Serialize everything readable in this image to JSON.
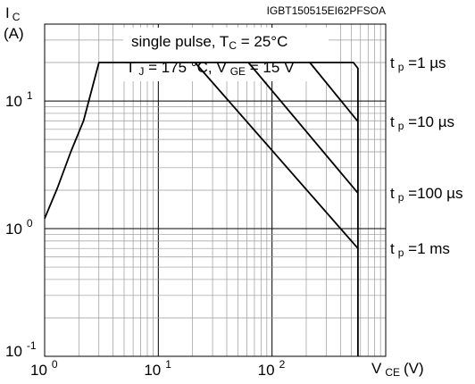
{
  "chart_data": {
    "type": "line",
    "figure_id": "IGBT150515EI62PFSOA",
    "y_axis": {
      "symbol": "I",
      "subscript": "C",
      "unit": "(A)",
      "scale": "log",
      "ylim": [
        0.1,
        40
      ],
      "tick_labels": [
        {
          "value": 0.1,
          "base": "10",
          "exp": "-1"
        },
        {
          "value": 1,
          "base": "10",
          "exp": "0"
        },
        {
          "value": 10,
          "base": "10",
          "exp": "1"
        }
      ]
    },
    "x_axis": {
      "symbol": "V",
      "subscript": "CE",
      "unit": "(V)",
      "scale": "log",
      "xlim": [
        1,
        1000
      ],
      "tick_labels": [
        {
          "value": 1,
          "base": "10",
          "exp": "0"
        },
        {
          "value": 10,
          "base": "10",
          "exp": "1"
        },
        {
          "value": 100,
          "base": "10",
          "exp": "2"
        }
      ]
    },
    "condition_box": {
      "line1": {
        "text": "single pulse, T",
        "sub": "C",
        "tail": " = 25°C"
      },
      "line2": {
        "a": "T",
        "a_sub": "J",
        "b": " = 175 °C, V",
        "b_sub": "GE",
        "c": " = 15 V"
      }
    },
    "grid": true,
    "series": [
      {
        "name": "t p =1 µs",
        "label_prefix": "t",
        "label_sub": "p",
        "label_suffix": " =1 µs",
        "points": [
          [
            1.0,
            1.2
          ],
          [
            1.3,
            2.1
          ],
          [
            1.7,
            4.0
          ],
          [
            2.2,
            7.0
          ],
          [
            3.0,
            20
          ],
          [
            520,
            20
          ],
          [
            570,
            18
          ],
          [
            570,
            0.1
          ]
        ]
      },
      {
        "name": "t p =10 µs",
        "label_prefix": "t",
        "label_sub": "p",
        "label_suffix": " =10 µs",
        "points": [
          [
            215,
            20
          ],
          [
            570,
            6.9
          ]
        ]
      },
      {
        "name": "t p =100 µs",
        "label_prefix": "t",
        "label_sub": "p",
        "label_suffix": " =100 µs",
        "points": [
          [
            62,
            20
          ],
          [
            570,
            1.9
          ]
        ]
      },
      {
        "name": "t p =1 ms",
        "label_prefix": "t",
        "label_sub": "p",
        "label_suffix": " =1 ms",
        "points": [
          [
            21,
            20
          ],
          [
            570,
            0.7
          ]
        ]
      }
    ]
  }
}
